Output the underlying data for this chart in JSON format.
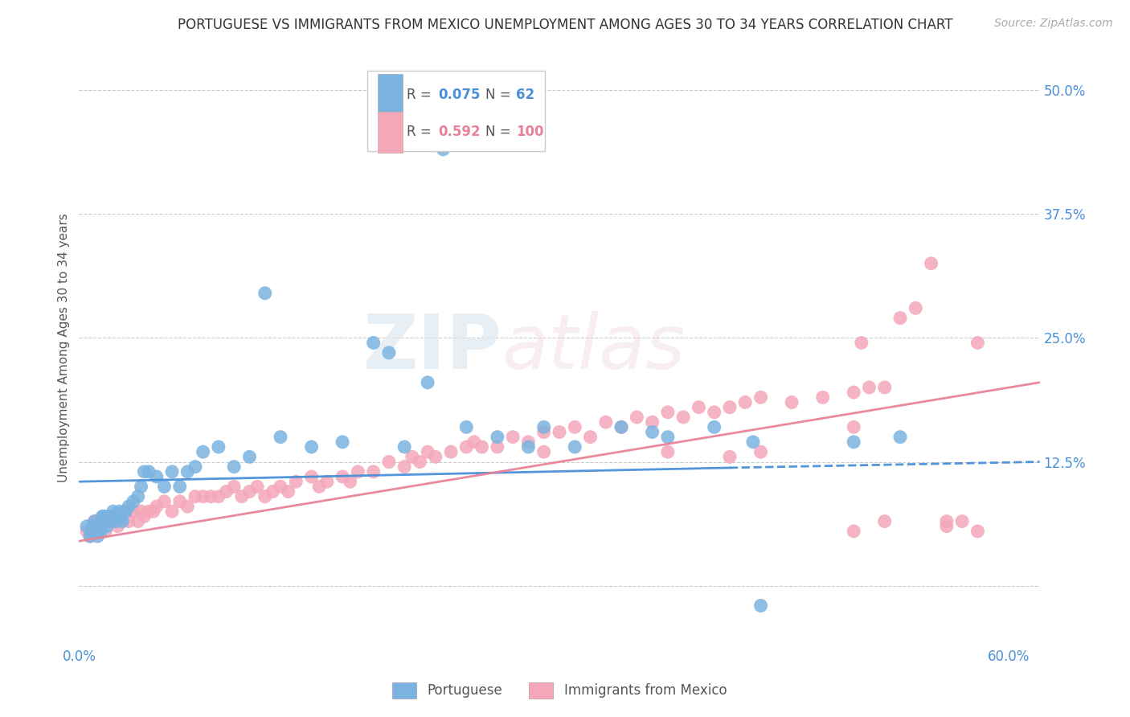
{
  "title": "PORTUGUESE VS IMMIGRANTS FROM MEXICO UNEMPLOYMENT AMONG AGES 30 TO 34 YEARS CORRELATION CHART",
  "source": "Source: ZipAtlas.com",
  "ylabel": "Unemployment Among Ages 30 to 34 years",
  "xlim": [
    0.0,
    0.62
  ],
  "ylim": [
    -0.06,
    0.54
  ],
  "xticks": [
    0.0,
    0.1,
    0.2,
    0.3,
    0.4,
    0.5,
    0.6
  ],
  "xticklabels": [
    "0.0%",
    "",
    "",
    "",
    "",
    "",
    "60.0%"
  ],
  "yticks": [
    0.0,
    0.125,
    0.25,
    0.375,
    0.5
  ],
  "yticklabels": [
    "",
    "12.5%",
    "25.0%",
    "37.5%",
    "50.0%"
  ],
  "portuguese_color": "#7ab3e0",
  "mexico_color": "#f4a7b9",
  "portuguese_R": 0.075,
  "portuguese_N": 62,
  "mexico_R": 0.592,
  "mexico_N": 100,
  "watermark_zip": "ZIP",
  "watermark_atlas": "atlas",
  "port_line_start_y": 0.105,
  "port_line_end_y": 0.125,
  "port_line_dash_start": 0.42,
  "mex_line_start_y": 0.045,
  "mex_line_end_y": 0.205,
  "port_scatter_x": [
    0.005,
    0.007,
    0.008,
    0.009,
    0.01,
    0.012,
    0.013,
    0.014,
    0.015,
    0.015,
    0.016,
    0.017,
    0.018,
    0.019,
    0.02,
    0.021,
    0.022,
    0.023,
    0.024,
    0.025,
    0.026,
    0.027,
    0.028,
    0.03,
    0.032,
    0.035,
    0.038,
    0.04,
    0.042,
    0.045,
    0.05,
    0.055,
    0.06,
    0.065,
    0.07,
    0.075,
    0.08,
    0.09,
    0.1,
    0.11,
    0.12,
    0.13,
    0.15,
    0.17,
    0.19,
    0.2,
    0.21,
    0.225,
    0.235,
    0.25,
    0.27,
    0.29,
    0.3,
    0.32,
    0.35,
    0.37,
    0.38,
    0.41,
    0.435,
    0.44,
    0.5,
    0.53
  ],
  "port_scatter_y": [
    0.06,
    0.05,
    0.055,
    0.06,
    0.065,
    0.05,
    0.06,
    0.055,
    0.07,
    0.065,
    0.07,
    0.065,
    0.06,
    0.07,
    0.07,
    0.065,
    0.075,
    0.07,
    0.065,
    0.07,
    0.075,
    0.07,
    0.065,
    0.075,
    0.08,
    0.085,
    0.09,
    0.1,
    0.115,
    0.115,
    0.11,
    0.1,
    0.115,
    0.1,
    0.115,
    0.12,
    0.135,
    0.14,
    0.12,
    0.13,
    0.295,
    0.15,
    0.14,
    0.145,
    0.245,
    0.235,
    0.14,
    0.205,
    0.44,
    0.16,
    0.15,
    0.14,
    0.16,
    0.14,
    0.16,
    0.155,
    0.15,
    0.16,
    0.145,
    -0.02,
    0.145,
    0.15
  ],
  "mex_scatter_x": [
    0.005,
    0.007,
    0.008,
    0.009,
    0.01,
    0.012,
    0.013,
    0.015,
    0.016,
    0.017,
    0.018,
    0.019,
    0.02,
    0.022,
    0.023,
    0.025,
    0.027,
    0.03,
    0.032,
    0.035,
    0.038,
    0.04,
    0.042,
    0.045,
    0.048,
    0.05,
    0.055,
    0.06,
    0.065,
    0.07,
    0.075,
    0.08,
    0.085,
    0.09,
    0.095,
    0.1,
    0.105,
    0.11,
    0.115,
    0.12,
    0.125,
    0.13,
    0.135,
    0.14,
    0.15,
    0.155,
    0.16,
    0.17,
    0.175,
    0.18,
    0.19,
    0.2,
    0.21,
    0.215,
    0.22,
    0.225,
    0.23,
    0.24,
    0.25,
    0.255,
    0.26,
    0.27,
    0.28,
    0.29,
    0.3,
    0.31,
    0.32,
    0.33,
    0.34,
    0.35,
    0.36,
    0.37,
    0.38,
    0.39,
    0.4,
    0.41,
    0.42,
    0.43,
    0.44,
    0.46,
    0.48,
    0.5,
    0.505,
    0.51,
    0.52,
    0.53,
    0.54,
    0.55,
    0.56,
    0.57,
    0.38,
    0.42,
    0.52,
    0.56,
    0.3,
    0.44,
    0.5,
    0.58,
    0.58,
    0.5
  ],
  "mex_scatter_y": [
    0.055,
    0.05,
    0.055,
    0.06,
    0.065,
    0.055,
    0.065,
    0.06,
    0.065,
    0.055,
    0.07,
    0.065,
    0.065,
    0.07,
    0.065,
    0.06,
    0.07,
    0.075,
    0.065,
    0.075,
    0.065,
    0.075,
    0.07,
    0.075,
    0.075,
    0.08,
    0.085,
    0.075,
    0.085,
    0.08,
    0.09,
    0.09,
    0.09,
    0.09,
    0.095,
    0.1,
    0.09,
    0.095,
    0.1,
    0.09,
    0.095,
    0.1,
    0.095,
    0.105,
    0.11,
    0.1,
    0.105,
    0.11,
    0.105,
    0.115,
    0.115,
    0.125,
    0.12,
    0.13,
    0.125,
    0.135,
    0.13,
    0.135,
    0.14,
    0.145,
    0.14,
    0.14,
    0.15,
    0.145,
    0.155,
    0.155,
    0.16,
    0.15,
    0.165,
    0.16,
    0.17,
    0.165,
    0.175,
    0.17,
    0.18,
    0.175,
    0.18,
    0.185,
    0.19,
    0.185,
    0.19,
    0.195,
    0.245,
    0.2,
    0.2,
    0.27,
    0.28,
    0.325,
    0.06,
    0.065,
    0.135,
    0.13,
    0.065,
    0.065,
    0.135,
    0.135,
    0.055,
    0.055,
    0.245,
    0.16
  ]
}
